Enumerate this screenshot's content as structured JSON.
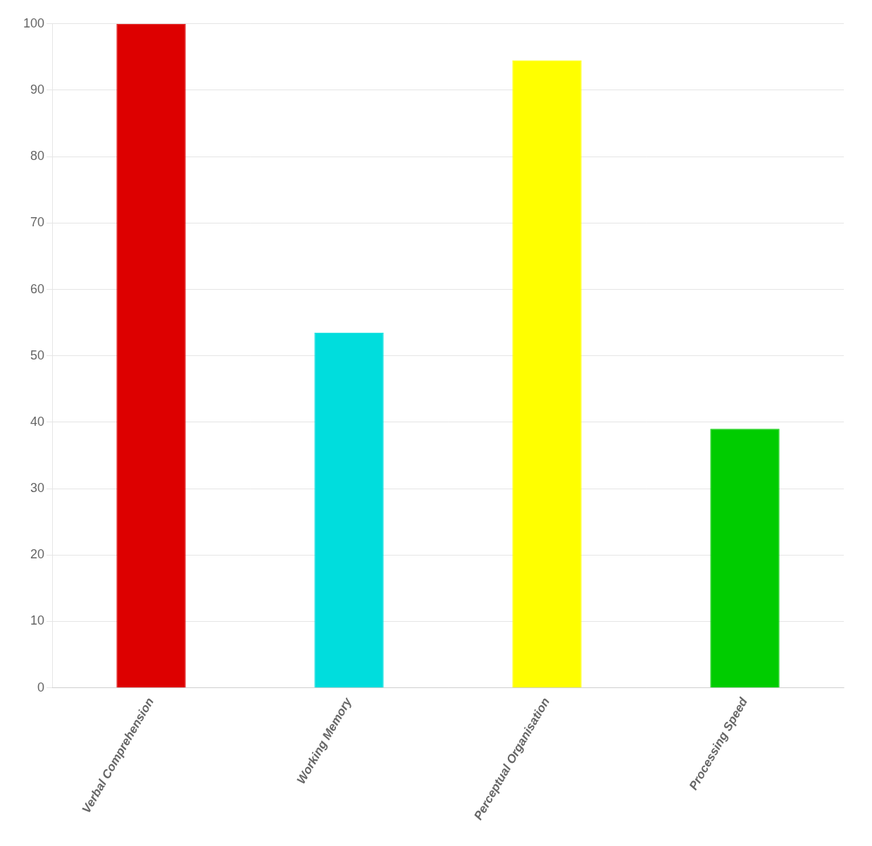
{
  "chart_data": {
    "type": "bar",
    "categories": [
      "Verbal Comprehension",
      "Working Memory",
      "Perceptual Organisation",
      "Processing Speed"
    ],
    "values": [
      100,
      53.5,
      94.5,
      39
    ],
    "colors": [
      "#dd0000",
      "#00dddd",
      "#ffff00",
      "#00cc00"
    ],
    "ylim": [
      0,
      100
    ],
    "yticks": [
      0,
      10,
      20,
      30,
      40,
      50,
      60,
      70,
      80,
      90,
      100
    ],
    "grid": true
  }
}
